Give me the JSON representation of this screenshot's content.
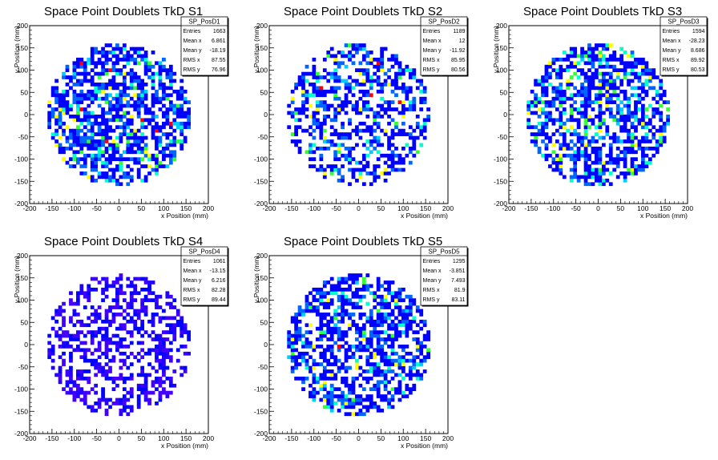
{
  "chart_data": [
    {
      "type": "heatmap",
      "title": "Space Point Doublets TkD S1",
      "xlabel": "x Position (mm)",
      "ylabel": "y Position (mm)",
      "xlim": [
        -200,
        200
      ],
      "ylim": [
        -200,
        200
      ],
      "xticks": [
        "-200",
        "-150",
        "-100",
        "-50",
        "0",
        "50",
        "100",
        "150",
        "200"
      ],
      "yticks": [
        "-200",
        "-150",
        "-100",
        "-50",
        "0",
        "50",
        "100",
        "150",
        "200"
      ],
      "stats": {
        "name": "SP_PosD1",
        "rows": [
          {
            "label": "Entries",
            "value": "1663"
          },
          {
            "label": "Mean x",
            "value": "6.861"
          },
          {
            "label": "Mean y",
            "value": "-18.19"
          },
          {
            "label": "RMS x",
            "value": "87.55"
          },
          {
            "label": "RMS y",
            "value": "76.96"
          }
        ]
      },
      "colors": [
        "#0000ff",
        "#0066ff",
        "#00ccff",
        "#00ffcc",
        "#33ff33",
        "#ffff00",
        "#ff0000"
      ],
      "fill_fraction": 0.62,
      "hot_fraction": 0.18,
      "seed": 11
    },
    {
      "type": "heatmap",
      "title": "Space Point Doublets TkD S2",
      "xlabel": "x Position (mm)",
      "ylabel": "y Position (mm)",
      "xlim": [
        -200,
        200
      ],
      "ylim": [
        -200,
        200
      ],
      "xticks": [
        "-200",
        "-150",
        "-100",
        "-50",
        "0",
        "50",
        "100",
        "150",
        "200"
      ],
      "yticks": [
        "-200",
        "-150",
        "-100",
        "-50",
        "0",
        "50",
        "100",
        "150",
        "200"
      ],
      "stats": {
        "name": "SP_PosD2",
        "rows": [
          {
            "label": "Entries",
            "value": "1189"
          },
          {
            "label": "Mean x",
            "value": "12"
          },
          {
            "label": "Mean y",
            "value": "-11.92"
          },
          {
            "label": "RMS x",
            "value": "85.95"
          },
          {
            "label": "RMS y",
            "value": "80.56"
          }
        ]
      },
      "colors": [
        "#0000ff",
        "#0066ff",
        "#00ccff",
        "#00ffcc",
        "#33ff33",
        "#ffff00",
        "#ff0000"
      ],
      "fill_fraction": 0.48,
      "hot_fraction": 0.12,
      "seed": 23
    },
    {
      "type": "heatmap",
      "title": "Space Point Doublets TkD S3",
      "xlabel": "x Position (mm)",
      "ylabel": "y Position (mm)",
      "xlim": [
        -200,
        200
      ],
      "ylim": [
        -200,
        200
      ],
      "xticks": [
        "-200",
        "-150",
        "-100",
        "-50",
        "0",
        "50",
        "100",
        "150",
        "200"
      ],
      "yticks": [
        "-200",
        "-150",
        "-100",
        "-50",
        "0",
        "50",
        "100",
        "150",
        "200"
      ],
      "stats": {
        "name": "SP_PosD3",
        "rows": [
          {
            "label": "Entries",
            "value": "1594"
          },
          {
            "label": "Mean x",
            "value": "-28.23"
          },
          {
            "label": "Mean y",
            "value": "8.686"
          },
          {
            "label": "RMS x",
            "value": "89.92"
          },
          {
            "label": "RMS y",
            "value": "80.53"
          }
        ]
      },
      "colors": [
        "#0000ff",
        "#0066ff",
        "#00ccff",
        "#00ffcc",
        "#33ff33",
        "#ffff00",
        "#ff0000"
      ],
      "fill_fraction": 0.6,
      "hot_fraction": 0.2,
      "seed": 37
    },
    {
      "type": "heatmap",
      "title": "Space Point Doublets TkD S4",
      "xlabel": "x Position (mm)",
      "ylabel": "y Position (mm)",
      "xlim": [
        -200,
        200
      ],
      "ylim": [
        -200,
        200
      ],
      "xticks": [
        "-200",
        "-150",
        "-100",
        "-50",
        "0",
        "50",
        "100",
        "150",
        "200"
      ],
      "yticks": [
        "-200",
        "-150",
        "-100",
        "-50",
        "0",
        "50",
        "100",
        "150",
        "200"
      ],
      "stats": {
        "name": "SP_PosD4",
        "rows": [
          {
            "label": "Entries",
            "value": "1061"
          },
          {
            "label": "Mean x",
            "value": "-13.15"
          },
          {
            "label": "Mean y",
            "value": "6.216"
          },
          {
            "label": "RMS x",
            "value": "82.28"
          },
          {
            "label": "RMS y",
            "value": "89.44"
          }
        ]
      },
      "colors": [
        "#4400ff",
        "#2200ff",
        "#0000ff"
      ],
      "fill_fraction": 0.45,
      "hot_fraction": 0.0,
      "seed": 41
    },
    {
      "type": "heatmap",
      "title": "Space Point Doublets TkD S5",
      "xlabel": "x Position (mm)",
      "ylabel": "y Position (mm)",
      "xlim": [
        -200,
        200
      ],
      "ylim": [
        -200,
        200
      ],
      "xticks": [
        "-200",
        "-150",
        "-100",
        "-50",
        "0",
        "50",
        "100",
        "150",
        "200"
      ],
      "yticks": [
        "-200",
        "-150",
        "-100",
        "-50",
        "0",
        "50",
        "100",
        "150",
        "200"
      ],
      "stats": {
        "name": "SP_PosD5",
        "rows": [
          {
            "label": "Entries",
            "value": "1295"
          },
          {
            "label": "Mean x",
            "value": "-3.851"
          },
          {
            "label": "Mean y",
            "value": "7.493"
          },
          {
            "label": "RMS x",
            "value": "81.9"
          },
          {
            "label": "RMS y",
            "value": "83.11"
          }
        ]
      },
      "colors": [
        "#0000ff",
        "#0066ff",
        "#00ccff",
        "#00ffcc",
        "#33ff33",
        "#ffff00",
        "#ff0000"
      ],
      "fill_fraction": 0.55,
      "hot_fraction": 0.15,
      "seed": 53
    }
  ]
}
